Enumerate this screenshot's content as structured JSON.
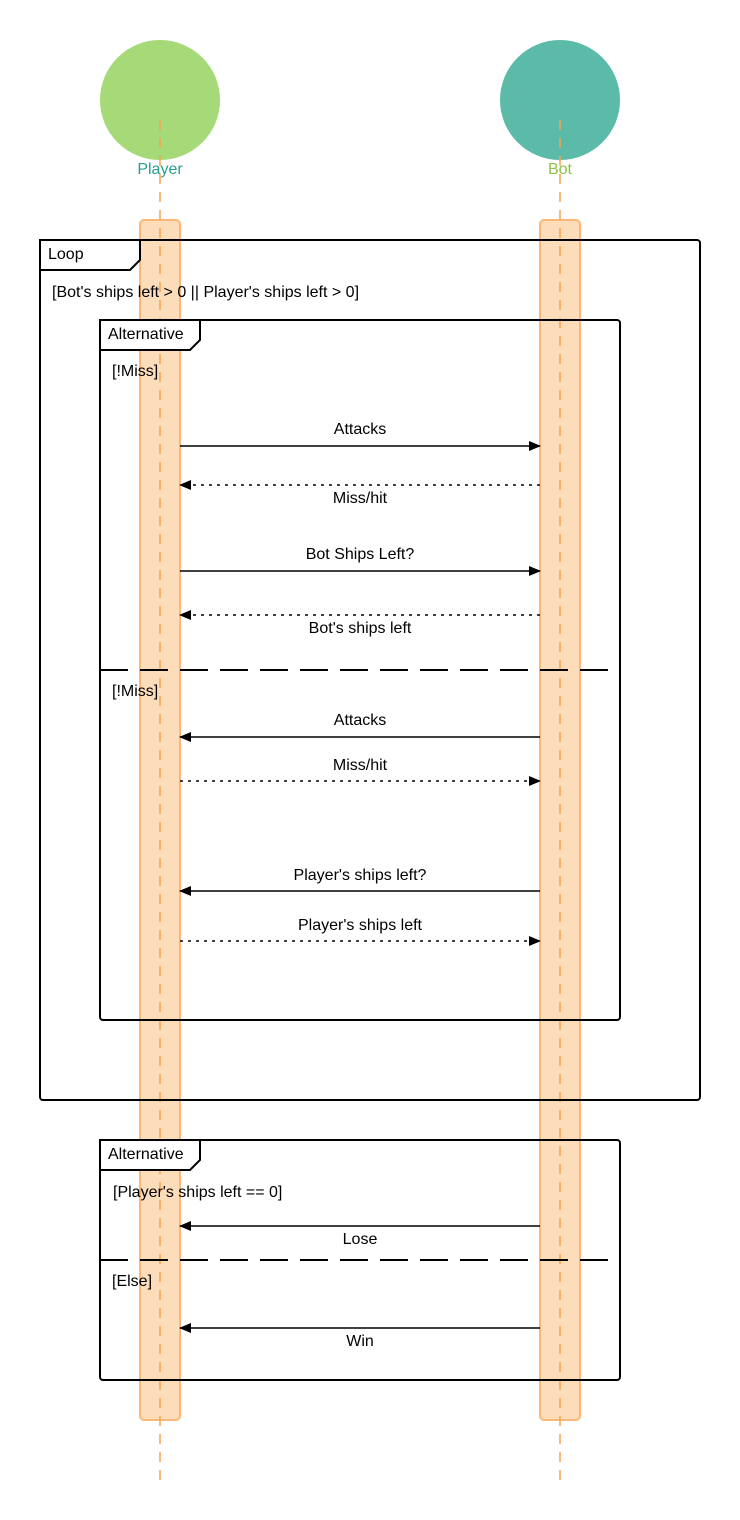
{
  "actors": {
    "player": {
      "label": "Player",
      "circle_color": "#a6d977",
      "label_color": "#2a9d8f"
    },
    "bot": {
      "label": "Bot",
      "circle_color": "#5bbaa8",
      "label_color": "#8bc34a"
    }
  },
  "colors": {
    "activation_fill": "#fddcba",
    "activation_stroke": "#f8b878",
    "lifeline": "#f5a44c",
    "frame": "#000000"
  },
  "loop": {
    "tag": "Loop",
    "guard": "[Bot's ships left > 0 || Player's ships left > 0]"
  },
  "alt1": {
    "tag": "Alternative",
    "guard1": "[!Miss]",
    "guard2": "[!Miss]"
  },
  "alt2": {
    "tag": "Alternative",
    "guard1": "[Player's ships left == 0]",
    "guard2": "[Else]"
  },
  "messages": {
    "m1": "Attacks",
    "m2": "Miss/hit",
    "m3": "Bot Ships Left?",
    "m4": "Bot's ships left",
    "m5": "Attacks",
    "m6": "Miss/hit",
    "m7": "Player's ships left?",
    "m8": "Player's ships left",
    "m9": "Lose",
    "m10": "Win"
  }
}
